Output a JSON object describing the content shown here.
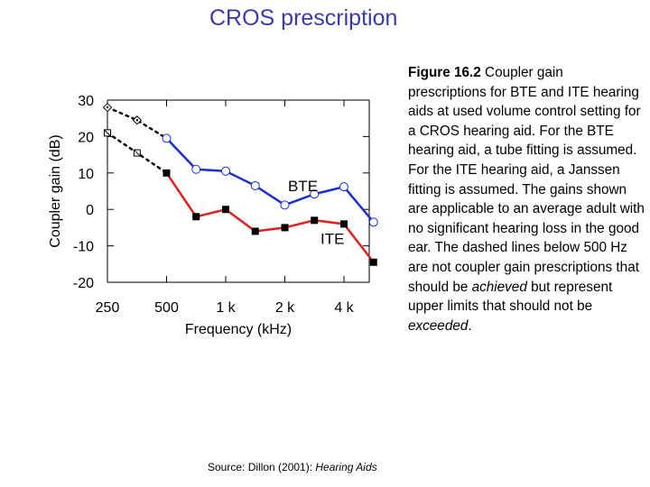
{
  "slide": {
    "title": "CROS prescription"
  },
  "caption": {
    "fig_label": "Figure 16.2",
    "part1": "  Coupler gain prescriptions for BTE and ITE hearing aids at used volume control setting for a CROS hearing aid.  For the BTE hearing aid, a tube fitting is assumed.  For the ITE hearing aid, a Janssen fitting is assumed.  The gains shown are applicable to an average adult with no significant hearing loss in the good ear.  The dashed lines below 500 Hz are not coupler gain prescriptions that should be ",
    "em1": "achieved",
    "part2": " but represent upper limits that should not be ",
    "em2": "exceeded",
    "part3": "."
  },
  "source": {
    "prefix": "Source:  Dillon (2001): ",
    "title": "Hearing Aids"
  },
  "chart_data": {
    "type": "line",
    "xlabel": "Frequency (kHz)",
    "ylabel": "Coupler gain (dB)",
    "x_scale": "log2",
    "xlim": [
      250,
      6000
    ],
    "ylim": [
      -20,
      30
    ],
    "x_ticks": [
      250,
      500,
      1000,
      2000,
      4000
    ],
    "x_tick_labels": [
      "250",
      "500",
      "1 k",
      "2 k",
      "4 k"
    ],
    "y_ticks": [
      30,
      20,
      10,
      0,
      -10,
      -20
    ],
    "y_tick_labels": [
      "30",
      "20",
      "10",
      "0",
      "-10",
      "-20"
    ],
    "grid": false,
    "series": [
      {
        "name": "BTE",
        "color": "#1a2fd0",
        "marker": "open-circle",
        "x": [
          500,
          707,
          1000,
          1414,
          2000,
          2828,
          4000,
          5657
        ],
        "y": [
          19.5,
          11,
          10.5,
          6.5,
          1.2,
          4.2,
          6.2,
          -3.5
        ]
      },
      {
        "name": "ITE",
        "color": "#e02020",
        "marker": "filled-square",
        "x": [
          500,
          707,
          1000,
          1414,
          2000,
          2828,
          4000,
          5657
        ],
        "y": [
          10,
          -2,
          0,
          -6,
          -5,
          -3,
          -4,
          -14.5
        ]
      },
      {
        "name": "BTE upper limit",
        "style": "dashed",
        "marker": "diamond-dot",
        "x": [
          250,
          354,
          500
        ],
        "y": [
          28,
          24.5,
          19.5
        ]
      },
      {
        "name": "ITE upper limit",
        "style": "dashed",
        "marker": "square-dot",
        "x": [
          250,
          354,
          500
        ],
        "y": [
          21,
          15.5,
          10
        ]
      }
    ],
    "annotations": [
      {
        "text": "BTE",
        "x": 2000,
        "y": 6.5
      },
      {
        "text": "ITE",
        "x": 2828,
        "y": -8
      }
    ]
  }
}
